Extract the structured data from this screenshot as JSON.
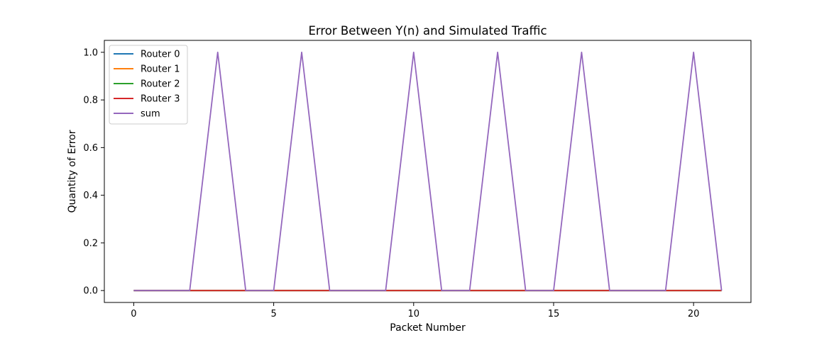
{
  "chart_data": {
    "type": "line",
    "title": "Error Between Y(n) and Simulated Traffic",
    "xlabel": "Packet Number",
    "ylabel": "Quantity of Error",
    "xlim": [
      -1.05,
      22.05
    ],
    "ylim": [
      -0.05,
      1.05
    ],
    "xticks": [
      0,
      5,
      10,
      15,
      20
    ],
    "yticks": [
      0.0,
      0.2,
      0.4,
      0.6,
      0.8,
      1.0
    ],
    "xtick_labels": [
      "0",
      "5",
      "10",
      "15",
      "20"
    ],
    "ytick_labels": [
      "0.0",
      "0.2",
      "0.4",
      "0.6",
      "0.8",
      "1.0"
    ],
    "grid": false,
    "legend_position": "top-left",
    "x": [
      0,
      1,
      2,
      3,
      4,
      5,
      6,
      7,
      8,
      9,
      10,
      11,
      12,
      13,
      14,
      15,
      16,
      17,
      18,
      19,
      20,
      21
    ],
    "series": [
      {
        "name": "Router 0",
        "color": "#1f77b4",
        "values": [
          0,
          0,
          0,
          0,
          0,
          0,
          0,
          0,
          0,
          0,
          0,
          0,
          0,
          0,
          0,
          0,
          0,
          0,
          0,
          0,
          0,
          0
        ]
      },
      {
        "name": "Router 1",
        "color": "#ff7f0e",
        "values": [
          0,
          0,
          0,
          0,
          0,
          0,
          0,
          0,
          0,
          0,
          0,
          0,
          0,
          0,
          0,
          0,
          0,
          0,
          0,
          0,
          0,
          0
        ]
      },
      {
        "name": "Router 2",
        "color": "#2ca02c",
        "values": [
          0,
          0,
          0,
          0,
          0,
          0,
          0,
          0,
          0,
          0,
          0,
          0,
          0,
          0,
          0,
          0,
          0,
          0,
          0,
          0,
          0,
          0
        ]
      },
      {
        "name": "Router 3",
        "color": "#d62728",
        "values": [
          0,
          0,
          0,
          0,
          0,
          0,
          0,
          0,
          0,
          0,
          0,
          0,
          0,
          0,
          0,
          0,
          0,
          0,
          0,
          0,
          0,
          0
        ]
      },
      {
        "name": "sum",
        "color": "#9467bd",
        "values": [
          0,
          0,
          0,
          1,
          0,
          0,
          1,
          0,
          0,
          0,
          1,
          0,
          0,
          1,
          0,
          0,
          1,
          0,
          0,
          0,
          1,
          0
        ]
      }
    ]
  }
}
